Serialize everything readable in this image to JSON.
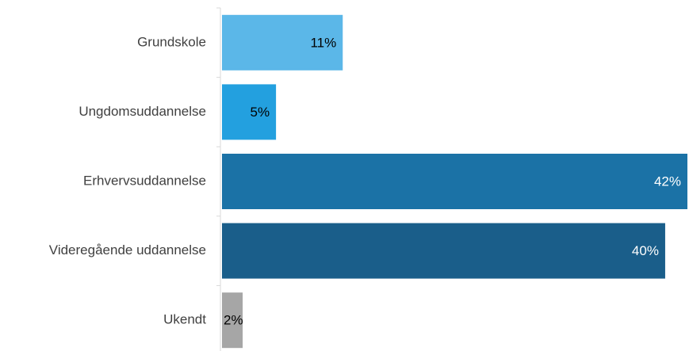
{
  "chart_data": {
    "type": "bar",
    "orientation": "horizontal",
    "categories": [
      "Grundskole",
      "Ungdomsuddannelse",
      "Erhvervsuddannelse",
      "Videregående uddannelse",
      "Ukendt"
    ],
    "values": [
      11,
      5,
      42,
      40,
      2
    ],
    "value_labels": [
      "11%",
      "5%",
      "42%",
      "40%",
      "2%"
    ],
    "unit": "%",
    "xlim": [
      0,
      42
    ],
    "bar_colors": [
      "#5bb7e8",
      "#23a0df",
      "#1b72a6",
      "#1a5e8a",
      "#a6a6a6"
    ],
    "label_colors": [
      "#000000",
      "#000000",
      "#ffffff",
      "#ffffff",
      "#000000"
    ],
    "title": "",
    "xlabel": "",
    "ylabel": "",
    "grid": false,
    "legend": "none"
  }
}
